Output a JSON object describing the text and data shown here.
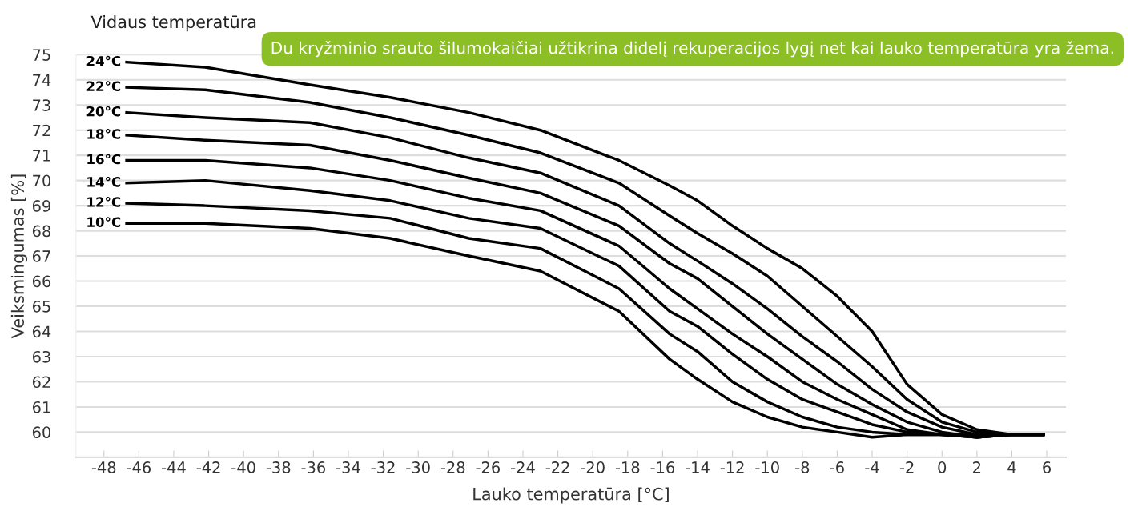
{
  "chart_data": {
    "type": "line",
    "title": "Vidaus temperatūra",
    "xlabel": "Lauko temperatūra [°C]",
    "ylabel": "Veiksmingumas [%]",
    "annotations": [
      "Du kryžminio srauto šilumokaičiai užtikrina didelį rekuperacijos lygį net kai lauko temperatūra yra žema."
    ],
    "x": [
      -46.7,
      -42.2,
      -36.2,
      -31.6,
      -27.1,
      -23.0,
      -18.5,
      -15.6,
      -14,
      -12,
      -10,
      -8,
      -6,
      -4,
      -2,
      0,
      2,
      4,
      5.8
    ],
    "series": [
      {
        "name": "24°C",
        "color": "#000000",
        "values": [
          74.7,
          74.5,
          73.8,
          73.3,
          72.7,
          72.0,
          70.8,
          69.8,
          69.2,
          68.2,
          67.3,
          66.5,
          65.4,
          64.0,
          61.9,
          60.7,
          60.1,
          59.9,
          59.9
        ]
      },
      {
        "name": "22°C",
        "color": "#000000",
        "values": [
          73.7,
          73.6,
          73.1,
          72.5,
          71.8,
          71.1,
          69.9,
          68.6,
          67.9,
          67.1,
          66.2,
          65.0,
          63.8,
          62.6,
          61.3,
          60.4,
          60.0,
          59.9,
          59.9
        ]
      },
      {
        "name": "20°C",
        "color": "#000000",
        "values": [
          72.7,
          72.5,
          72.3,
          71.7,
          70.9,
          70.3,
          69.0,
          67.5,
          66.8,
          65.9,
          64.9,
          63.8,
          62.8,
          61.7,
          60.8,
          60.2,
          59.9,
          59.9,
          59.9
        ]
      },
      {
        "name": "18°C",
        "color": "#000000",
        "values": [
          71.8,
          71.6,
          71.4,
          70.8,
          70.1,
          69.5,
          68.2,
          66.7,
          66.1,
          65.0,
          63.9,
          62.9,
          61.9,
          61.1,
          60.4,
          60.0,
          59.8,
          59.9,
          59.9
        ]
      },
      {
        "name": "16°C",
        "color": "#000000",
        "values": [
          70.8,
          70.8,
          70.5,
          70.0,
          69.3,
          68.8,
          67.4,
          65.7,
          64.9,
          63.9,
          63.0,
          62.0,
          61.3,
          60.7,
          60.1,
          59.9,
          59.8,
          59.9,
          59.9
        ]
      },
      {
        "name": "14°C",
        "color": "#000000",
        "values": [
          69.9,
          70.0,
          69.6,
          69.2,
          68.5,
          68.1,
          66.6,
          64.8,
          64.2,
          63.1,
          62.1,
          61.3,
          60.8,
          60.3,
          60.0,
          59.9,
          59.8,
          59.9,
          59.9
        ]
      },
      {
        "name": "12°C",
        "color": "#000000",
        "values": [
          69.1,
          69.0,
          68.8,
          68.5,
          67.7,
          67.3,
          65.7,
          63.9,
          63.2,
          62.0,
          61.2,
          60.6,
          60.2,
          60.0,
          59.9,
          59.9,
          59.8,
          59.9,
          59.9
        ]
      },
      {
        "name": "10°C",
        "color": "#000000",
        "values": [
          68.3,
          68.3,
          68.1,
          67.7,
          67.0,
          66.4,
          64.8,
          62.9,
          62.1,
          61.2,
          60.6,
          60.2,
          60.0,
          59.8,
          59.9,
          59.9,
          59.9,
          59.9,
          59.9
        ]
      }
    ],
    "xlim": [
      -49.6,
      7.1
    ],
    "ylim": [
      59,
      75
    ],
    "xticks": [
      -48,
      -46,
      -44,
      -42,
      -40,
      -38,
      -36,
      -34,
      -32,
      -30,
      -28,
      -26,
      -24,
      -22,
      -20,
      -18,
      -16,
      -14,
      -12,
      -10,
      -8,
      -6,
      -4,
      -2,
      0,
      2,
      4,
      6
    ],
    "yticks": [
      60,
      61,
      62,
      63,
      64,
      65,
      66,
      67,
      68,
      69,
      70,
      71,
      72,
      73,
      74,
      75
    ],
    "grid": "y",
    "legend": false,
    "marker": "none",
    "line_style": "solid"
  }
}
